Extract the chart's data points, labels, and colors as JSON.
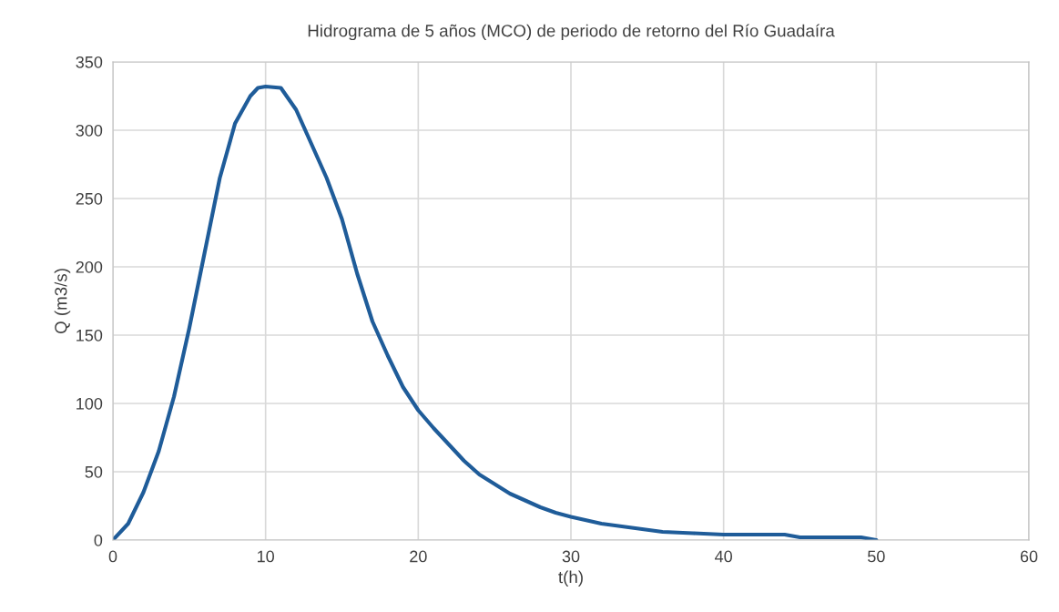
{
  "chart_data": {
    "type": "line",
    "title": "Hidrograma de 5 años (MCO) de periodo de retorno del Río Guadaíra",
    "xlabel": "t(h)",
    "ylabel": "Q (m3/s)",
    "x": [
      0,
      1,
      2,
      3,
      4,
      5,
      6,
      7,
      8,
      9,
      9.5,
      10,
      11,
      12,
      13,
      14,
      15,
      16,
      17,
      18,
      19,
      20,
      21,
      22,
      23,
      24,
      25,
      26,
      27,
      28,
      29,
      30,
      32,
      34,
      36,
      38,
      40,
      44,
      45,
      46,
      49,
      50
    ],
    "series": [
      {
        "color": "#1f5c99",
        "values": [
          0,
          12,
          35,
          65,
          105,
          155,
          210,
          265,
          305,
          325,
          331,
          332,
          331,
          315,
          290,
          265,
          235,
          195,
          160,
          135,
          112,
          95,
          82,
          70,
          58,
          48,
          41,
          34,
          29,
          24,
          20,
          17,
          12,
          9,
          6,
          5,
          4,
          4,
          2,
          2,
          2,
          0
        ]
      }
    ],
    "xlim": [
      0,
      60
    ],
    "xticks": [
      0,
      10,
      20,
      30,
      40,
      50,
      60
    ],
    "ylim": [
      0,
      350
    ],
    "yticks": [
      0,
      50,
      100,
      150,
      200,
      250,
      300,
      350
    ],
    "grid": true,
    "marker": "none",
    "line_style": "solid"
  }
}
